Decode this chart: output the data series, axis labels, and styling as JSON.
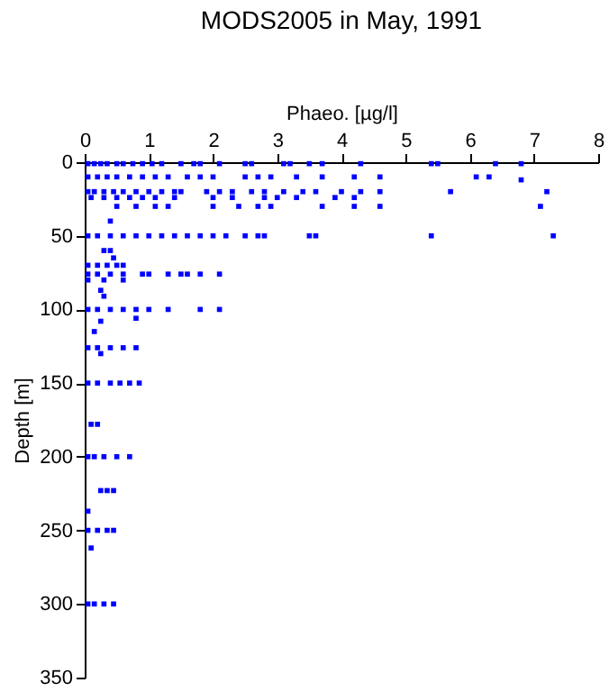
{
  "chart_data": {
    "type": "scatter",
    "title": "MODS2005 in May, 1991",
    "xlabel": "Phaeo. [µg/l]",
    "ylabel": "Depth [m]",
    "xlim": [
      0,
      8
    ],
    "xticks": [
      0,
      1,
      2,
      3,
      4,
      5,
      6,
      7,
      8
    ],
    "ylim": [
      350,
      0
    ],
    "yticks": [
      0,
      50,
      100,
      150,
      200,
      250,
      300,
      350
    ],
    "grid": false,
    "legend": false,
    "marker": "square",
    "series": [
      {
        "color": "#0000ff",
        "x": [
          0.05,
          0.15,
          0.25,
          0.35,
          0.5,
          0.6,
          0.75,
          0.9,
          1.05,
          1.2,
          1.5,
          1.7,
          1.8,
          2.1,
          2.5,
          2.6,
          3.1,
          3.2,
          3.5,
          3.7,
          4.3,
          5.4,
          5.5,
          6.4,
          6.8
        ],
        "values": [
          1,
          1,
          1,
          1,
          1,
          1,
          1,
          1,
          1,
          1,
          1,
          1,
          1,
          1,
          1,
          1,
          1,
          1,
          1,
          1,
          1,
          1,
          1,
          1,
          1
        ]
      },
      {
        "color": "#0000ff",
        "x": [
          0.05,
          0.2,
          0.35,
          0.5,
          0.7,
          0.9,
          1.1,
          1.3,
          1.6,
          1.8,
          2.0,
          2.5,
          2.7,
          2.9,
          3.3,
          3.7,
          4.2,
          4.6,
          6.1,
          6.3
        ],
        "values": [
          10,
          10,
          10,
          10,
          10,
          10,
          10,
          10,
          10,
          10,
          10,
          10,
          10,
          10,
          10,
          10,
          10,
          10,
          10,
          10
        ]
      },
      {
        "color": "#0000ff",
        "x": [
          6.8
        ],
        "values": [
          12
        ]
      },
      {
        "color": "#0000ff",
        "x": [
          0.05,
          0.15,
          0.3,
          0.45,
          0.6,
          0.8,
          1.0,
          1.2,
          1.4,
          1.5,
          1.9,
          2.1,
          2.3,
          2.6,
          2.8,
          3.1,
          3.4,
          3.6,
          4.0,
          4.3,
          4.6,
          5.7,
          7.2
        ],
        "values": [
          20,
          20,
          20,
          20,
          20,
          20,
          20,
          20,
          20,
          20,
          20,
          20,
          20,
          20,
          20,
          20,
          20,
          20,
          20,
          20,
          20,
          20,
          20
        ]
      },
      {
        "color": "#0000ff",
        "x": [
          0.1,
          0.3,
          0.5,
          0.7,
          0.9,
          1.1,
          1.4,
          2.0,
          2.3,
          2.8,
          3.0,
          3.3,
          3.9,
          4.2
        ],
        "values": [
          24,
          24,
          24,
          24,
          24,
          24,
          24,
          24,
          24,
          24,
          24,
          24,
          24,
          24
        ]
      },
      {
        "color": "#0000ff",
        "x": [
          0.5,
          0.8,
          1.1,
          1.3,
          2.0,
          2.4,
          2.7,
          2.9,
          3.7,
          4.2,
          4.6,
          7.1
        ],
        "values": [
          30,
          30,
          30,
          30,
          30,
          30,
          30,
          30,
          30,
          30,
          30,
          30
        ]
      },
      {
        "color": "#0000ff",
        "x": [
          0.4
        ],
        "values": [
          40
        ]
      },
      {
        "color": "#0000ff",
        "x": [
          0.05,
          0.2,
          0.4,
          0.6,
          0.8,
          1.0,
          1.2,
          1.4,
          1.6,
          1.8,
          2.0,
          2.2,
          2.5,
          2.7,
          2.8,
          3.5,
          3.6,
          5.4,
          7.3
        ],
        "values": [
          50,
          50,
          50,
          50,
          50,
          50,
          50,
          50,
          50,
          50,
          50,
          50,
          50,
          50,
          50,
          50,
          50,
          50,
          50
        ]
      },
      {
        "color": "#0000ff",
        "x": [
          0.3,
          0.4,
          0.45
        ],
        "values": [
          60,
          60,
          65
        ]
      },
      {
        "color": "#0000ff",
        "x": [
          0.05,
          0.2,
          0.35,
          0.5,
          0.6
        ],
        "values": [
          70,
          70,
          70,
          70,
          70
        ]
      },
      {
        "color": "#0000ff",
        "x": [
          0.05,
          0.2,
          0.4,
          0.6,
          0.9,
          1.0,
          1.3,
          1.5,
          1.6,
          1.8,
          2.1
        ],
        "values": [
          76,
          76,
          76,
          76,
          76,
          76,
          76,
          76,
          76,
          76,
          76
        ]
      },
      {
        "color": "#0000ff",
        "x": [
          0.05,
          0.3,
          0.6,
          0.25,
          0.3
        ],
        "values": [
          80,
          80,
          80,
          87,
          91
        ]
      },
      {
        "color": "#0000ff",
        "x": [
          0.05,
          0.2,
          0.4,
          0.6,
          0.8,
          1.0,
          1.3,
          1.8,
          2.1
        ],
        "values": [
          100,
          100,
          100,
          100,
          100,
          100,
          100,
          100,
          100
        ]
      },
      {
        "color": "#0000ff",
        "x": [
          0.8,
          0.25,
          0.15
        ],
        "values": [
          106,
          108,
          115
        ]
      },
      {
        "color": "#0000ff",
        "x": [
          0.05,
          0.2,
          0.4,
          0.6,
          0.8,
          0.25
        ],
        "values": [
          126,
          126,
          126,
          126,
          126,
          130
        ]
      },
      {
        "color": "#0000ff",
        "x": [
          0.05,
          0.2,
          0.4,
          0.55,
          0.7,
          0.85
        ],
        "values": [
          150,
          150,
          150,
          150,
          150,
          150
        ]
      },
      {
        "color": "#0000ff",
        "x": [
          0.1,
          0.2
        ],
        "values": [
          178,
          178
        ]
      },
      {
        "color": "#0000ff",
        "x": [
          0.05,
          0.15,
          0.3,
          0.5,
          0.7
        ],
        "values": [
          200,
          200,
          200,
          200,
          200
        ]
      },
      {
        "color": "#0000ff",
        "x": [
          0.25,
          0.35,
          0.45,
          0.05
        ],
        "values": [
          223,
          223,
          223,
          237
        ]
      },
      {
        "color": "#0000ff",
        "x": [
          0.05,
          0.2,
          0.35,
          0.45,
          0.1
        ],
        "values": [
          250,
          250,
          250,
          250,
          262
        ]
      },
      {
        "color": "#0000ff",
        "x": [
          0.05,
          0.15,
          0.3,
          0.45
        ],
        "values": [
          300,
          300,
          300,
          300
        ]
      }
    ]
  }
}
